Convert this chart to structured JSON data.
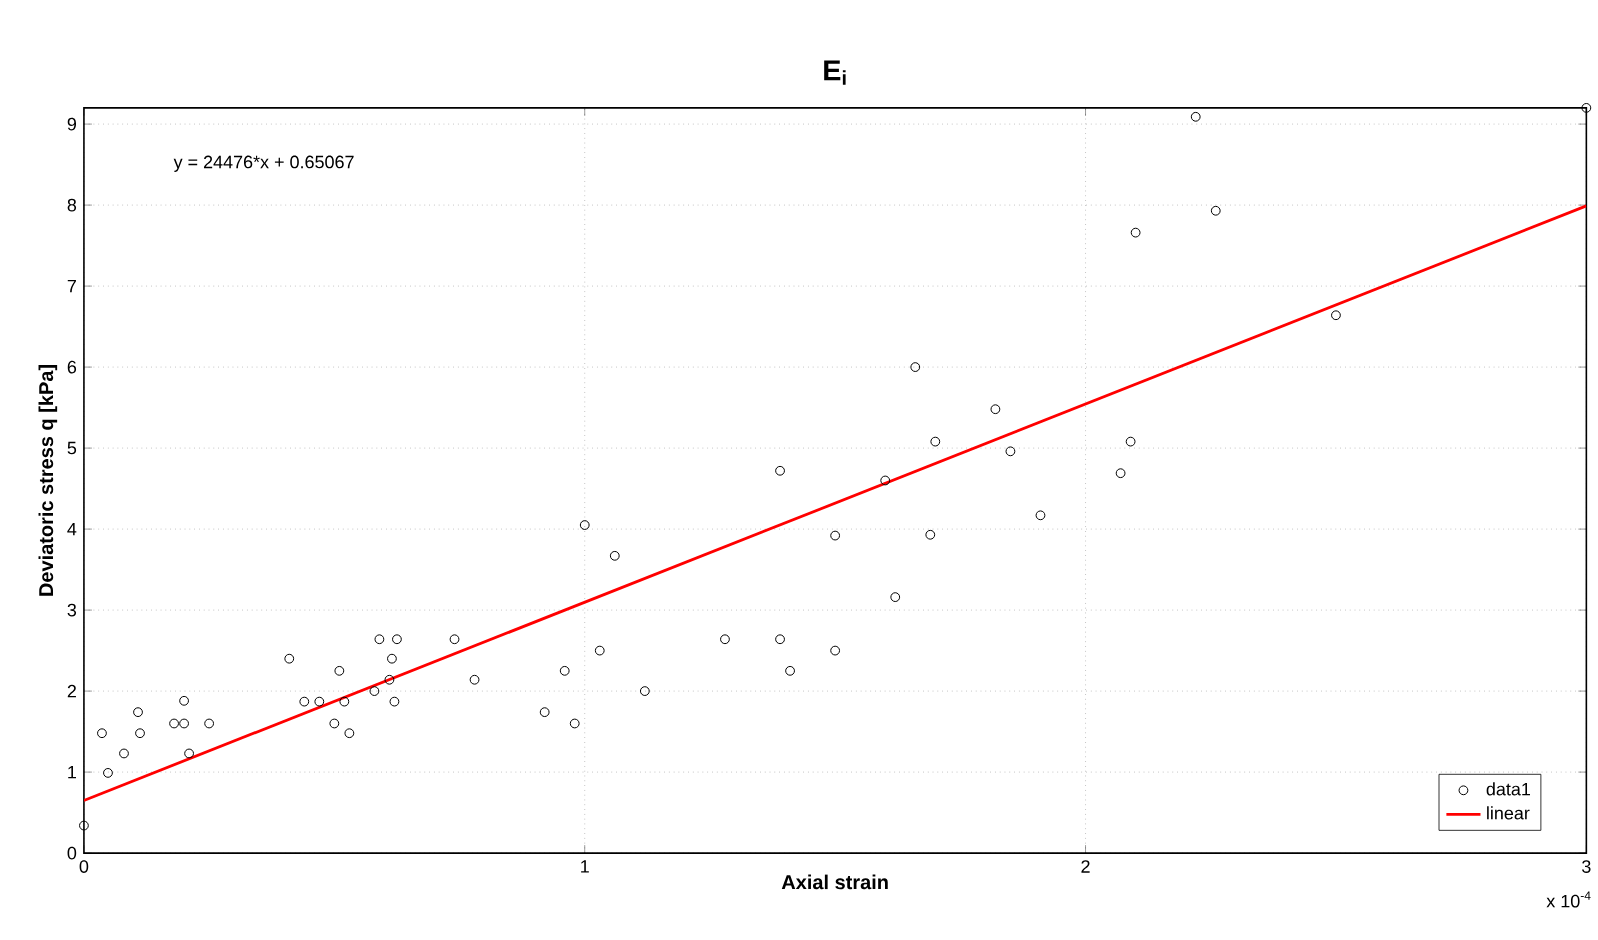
{
  "chart_data": {
    "type": "scatter",
    "title": "E$_{i}$",
    "xlabel": "Axial strain",
    "ylabel": "Deviatoric stress q [kPa]",
    "annotations": [
      "y = 24476*x + 0.65067",
      "x 10$^{-4}$"
    ],
    "xlim": [
      0,
      3
    ],
    "ylim": [
      0,
      9.2
    ],
    "xticks": [
      0,
      1,
      2,
      3
    ],
    "yticks": [
      0,
      1,
      2,
      3,
      4,
      5,
      6,
      7,
      8,
      9
    ],
    "grid": true,
    "legend": "bottom right",
    "series": [
      {
        "name": "data1",
        "marker": "circle",
        "color": "#000000",
        "x": [
          0,
          0.036,
          0.048,
          0.08,
          0.108,
          0.112,
          0.18,
          0.2,
          0.2,
          0.21,
          0.25,
          0.41,
          0.44,
          0.47,
          0.5,
          0.51,
          0.52,
          0.53,
          0.58,
          0.59,
          0.61,
          0.615,
          0.62,
          0.625,
          0.74,
          0.78,
          0.92,
          0.96,
          0.98,
          1.0,
          1.03,
          1.06,
          1.12,
          1.28,
          1.39,
          1.39,
          1.41,
          1.5,
          1.5,
          1.6,
          1.62,
          1.66,
          1.69,
          1.7,
          1.82,
          1.85,
          1.91,
          2.07,
          2.09,
          2.1,
          2.22,
          2.26,
          2.5,
          3.0
        ],
        "values": [
          0.34,
          1.48,
          0.99,
          1.23,
          1.74,
          1.48,
          1.6,
          1.88,
          1.6,
          1.23,
          1.6,
          2.4,
          1.87,
          1.87,
          1.6,
          2.25,
          1.87,
          1.48,
          2.0,
          2.64,
          2.14,
          2.4,
          1.87,
          2.64,
          2.64,
          2.14,
          1.74,
          2.25,
          1.6,
          4.05,
          2.5,
          3.67,
          2.0,
          2.64,
          4.72,
          2.64,
          2.25,
          2.5,
          3.92,
          4.6,
          3.16,
          6.0,
          3.93,
          5.08,
          5.48,
          4.96,
          4.17,
          4.69,
          5.08,
          7.66,
          9.09,
          7.93,
          6.64,
          9.2
        ]
      },
      {
        "name": "linear",
        "type": "line",
        "marker": "none",
        "line_style": "solid",
        "color": "#ff0000",
        "x": [
          0,
          3
        ],
        "values": [
          0.65,
          7.99
        ]
      }
    ]
  }
}
